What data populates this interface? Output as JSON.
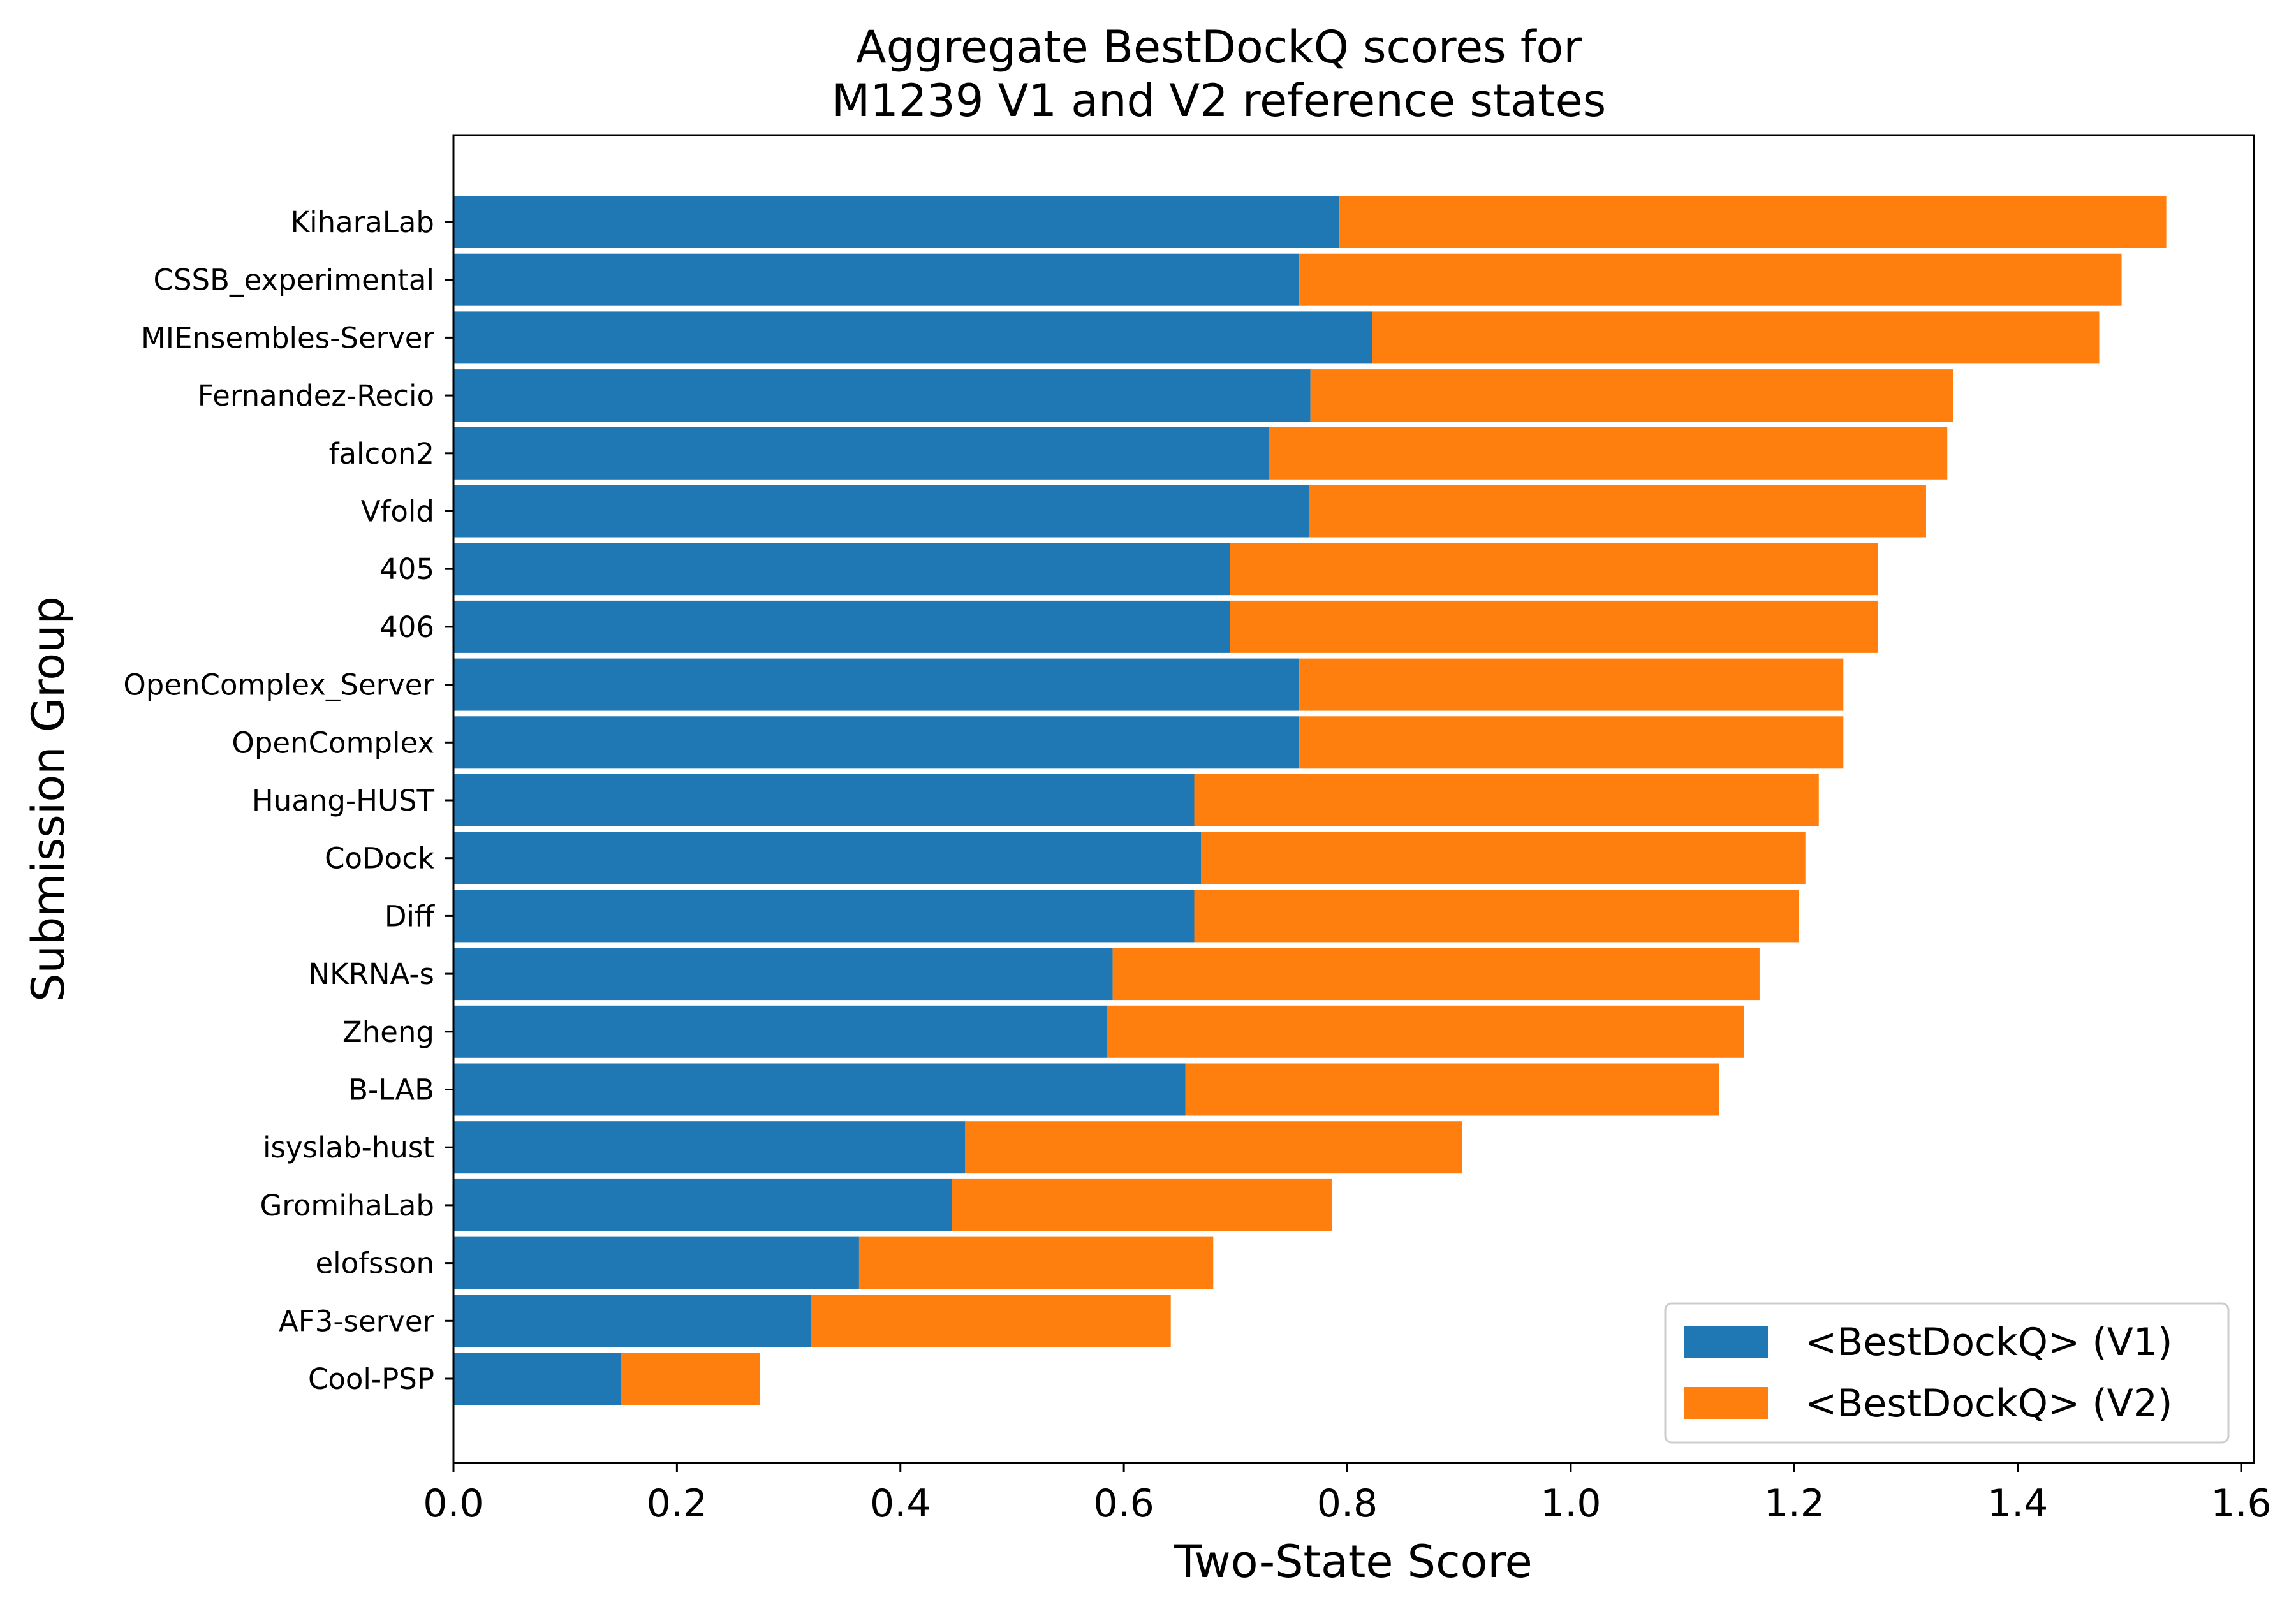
{
  "chart_data": {
    "type": "bar",
    "orientation": "horizontal",
    "stacked": true,
    "title_lines": [
      "Aggregate BestDockQ scores for",
      "M1239 V1 and V2 reference states"
    ],
    "xlabel": "Two-State Score",
    "ylabel": "Submission Group",
    "xlim": [
      0.0,
      1.6
    ],
    "xticks": [
      "0.0",
      "0.2",
      "0.4",
      "0.6",
      "0.8",
      "1.0",
      "1.2",
      "1.4",
      "1.6"
    ],
    "xtick_values": [
      0.0,
      0.2,
      0.4,
      0.6,
      0.8,
      1.0,
      1.2,
      1.4,
      1.6
    ],
    "legend_position": "lower-right",
    "grid": false,
    "categories": [
      "KiharaLab",
      "CSSB_experimental",
      "MIEnsembles-Server",
      "Fernandez-Recio",
      "falcon2",
      "Vfold",
      "405",
      "406",
      "OpenComplex_Server",
      "OpenComplex",
      "Huang-HUST",
      "CoDock",
      "Diff",
      "NKRNA-s",
      "Zheng",
      "B-LAB",
      "isyslab-hust",
      "GromihaLab",
      "elofsson",
      "AF3-server",
      "Cool-PSP"
    ],
    "series": [
      {
        "name": "<BestDockQ> (V1)",
        "color": "#1f77b4",
        "values": [
          0.793,
          0.757,
          0.822,
          0.767,
          0.73,
          0.766,
          0.695,
          0.695,
          0.757,
          0.757,
          0.663,
          0.669,
          0.663,
          0.59,
          0.585,
          0.655,
          0.458,
          0.446,
          0.363,
          0.32,
          0.15
        ]
      },
      {
        "name": "<BestDockQ> (V2)",
        "color": "#ff7f0e",
        "values": [
          0.74,
          0.736,
          0.651,
          0.575,
          0.607,
          0.552,
          0.58,
          0.58,
          0.487,
          0.487,
          0.559,
          0.541,
          0.541,
          0.579,
          0.57,
          0.478,
          0.445,
          0.34,
          0.317,
          0.322,
          0.124
        ]
      }
    ]
  }
}
